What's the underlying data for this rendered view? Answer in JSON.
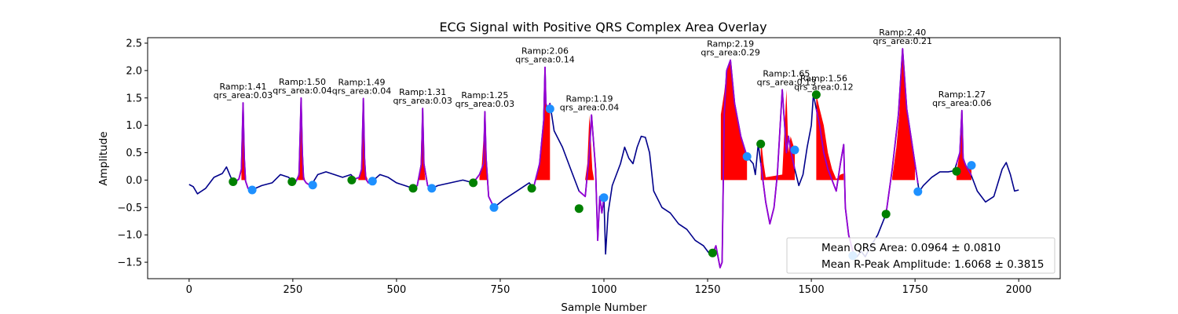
{
  "chart_data": {
    "type": "line",
    "title": "ECG Signal with Positive QRS Complex Area Overlay",
    "xlabel": "Sample Number",
    "ylabel": "Amplitude",
    "xlim": [
      -100,
      2100
    ],
    "ylim": [
      -1.8,
      2.6
    ],
    "xticks": [
      0,
      250,
      500,
      750,
      1000,
      1250,
      1500,
      1750,
      2000
    ],
    "yticks": [
      -1.5,
      -1.0,
      -0.5,
      0.0,
      0.5,
      1.0,
      1.5,
      2.0,
      2.5
    ],
    "grid": false,
    "legend_position": "lower right",
    "legend": [
      "Mean QRS Area: 0.0964 ± 0.0810",
      "Mean R-Peak Amplitude: 1.6068 ± 0.3815"
    ],
    "colors": {
      "ecg": "#00008b",
      "qrs_segment": "#9400d3",
      "area_fill": "#ff0000",
      "onset_marker": "#008000",
      "offset_marker": "#1e90ff"
    },
    "ecg_signal": {
      "x": [
        0,
        10,
        20,
        40,
        60,
        80,
        90,
        100,
        106,
        112,
        120,
        126,
        130,
        133,
        136,
        142,
        150,
        160,
        175,
        200,
        220,
        240,
        248,
        258,
        265,
        270,
        273,
        276,
        282,
        290,
        298,
        310,
        330,
        350,
        370,
        390,
        400,
        410,
        416,
        420,
        423,
        426,
        432,
        442,
        460,
        480,
        500,
        520,
        540,
        550,
        560,
        563,
        566,
        575,
        585,
        600,
        630,
        660,
        685,
        700,
        710,
        713,
        716,
        722,
        735,
        760,
        790,
        810,
        820,
        830,
        845,
        855,
        858,
        860,
        864,
        870,
        880,
        900,
        920,
        940,
        955,
        965,
        970,
        980,
        985,
        990,
        995,
        1000,
        1004,
        1010,
        1020,
        1040,
        1050,
        1060,
        1070,
        1080,
        1090,
        1100,
        1110,
        1120,
        1140,
        1160,
        1180,
        1200,
        1220,
        1240,
        1255,
        1263,
        1270,
        1280,
        1285,
        1290,
        1296,
        1305,
        1315,
        1330,
        1345,
        1360,
        1365,
        1372,
        1380,
        1390,
        1400,
        1410,
        1418,
        1430,
        1440,
        1445,
        1450,
        1460,
        1470,
        1480,
        1490,
        1500,
        1505,
        1512,
        1520,
        1530,
        1540,
        1550,
        1560,
        1570,
        1578,
        1582,
        1590,
        1600,
        1610,
        1620,
        1630,
        1640,
        1660,
        1680,
        1695,
        1710,
        1720,
        1730,
        1740,
        1750,
        1760,
        1770,
        1790,
        1810,
        1830,
        1845,
        1858,
        1863,
        1866,
        1872,
        1885,
        1900,
        1920,
        1940,
        1960,
        1970,
        1980,
        1990,
        2000
      ],
      "y": [
        -0.08,
        -0.12,
        -0.25,
        -0.15,
        0.05,
        0.12,
        0.24,
        0.06,
        -0.03,
        -0.03,
        0.02,
        0.2,
        1.41,
        0.4,
        -0.02,
        -0.15,
        -0.2,
        -0.15,
        -0.1,
        -0.05,
        0.1,
        0.05,
        -0.03,
        -0.02,
        0.1,
        1.5,
        0.5,
        0.02,
        -0.05,
        -0.09,
        -0.05,
        0.1,
        0.15,
        0.1,
        0.05,
        0.1,
        0.02,
        0.05,
        0.2,
        1.49,
        0.4,
        0.02,
        -0.05,
        -0.02,
        0.1,
        0.05,
        -0.05,
        -0.1,
        -0.15,
        -0.1,
        0.3,
        1.31,
        0.3,
        -0.1,
        -0.15,
        -0.1,
        -0.05,
        0.0,
        -0.05,
        0.1,
        0.3,
        1.25,
        0.4,
        -0.3,
        -0.5,
        -0.35,
        -0.2,
        -0.1,
        -0.05,
        -0.15,
        0.3,
        1.1,
        2.06,
        1.4,
        1.3,
        1.4,
        0.9,
        0.6,
        0.2,
        -0.2,
        -0.3,
        0.5,
        1.19,
        0.2,
        -1.1,
        -0.3,
        -0.6,
        -0.32,
        -1.35,
        -0.6,
        -0.1,
        0.3,
        0.6,
        0.4,
        0.3,
        0.6,
        0.8,
        0.78,
        0.5,
        -0.2,
        -0.5,
        -0.6,
        -0.8,
        -0.9,
        -1.1,
        -1.2,
        -1.35,
        -1.33,
        -1.2,
        -1.6,
        -1.5,
        1.2,
        2.0,
        2.19,
        1.4,
        0.8,
        0.43,
        0.3,
        0.1,
        0.66,
        0.2,
        -0.4,
        -0.8,
        -0.5,
        0.1,
        1.65,
        0.5,
        0.8,
        0.55,
        0.2,
        -0.1,
        0.1,
        0.6,
        1.0,
        1.56,
        1.3,
        1.0,
        0.5,
        0.2,
        0.0,
        -0.2,
        0.3,
        0.65,
        -0.5,
        -1.0,
        -1.3,
        -1.4,
        -1.3,
        -1.4,
        -1.25,
        -1.0,
        -0.62,
        0.2,
        1.2,
        2.4,
        1.3,
        0.8,
        0.3,
        -0.21,
        -0.1,
        0.05,
        0.15,
        0.15,
        0.17,
        0.5,
        1.27,
        0.4,
        0.27,
        0.1,
        -0.2,
        -0.4,
        -0.3,
        0.2,
        0.32,
        0.1,
        -0.2,
        -0.18
      ]
    },
    "qrs_segments": [
      [
        106,
        150
      ],
      [
        248,
        298
      ],
      [
        392,
        442
      ],
      [
        540,
        585
      ],
      [
        685,
        735
      ],
      [
        826,
        870
      ],
      [
        940,
        1000
      ],
      [
        1262,
        1345
      ],
      [
        1378,
        1460
      ],
      [
        1512,
        1600
      ],
      [
        1680,
        1757
      ],
      [
        1850,
        1886
      ]
    ],
    "onset_markers": {
      "x": [
        106,
        248,
        392,
        540,
        685,
        826,
        940,
        1262,
        1378,
        1512,
        1680,
        1850
      ],
      "y": [
        -0.03,
        -0.03,
        0.0,
        -0.15,
        -0.05,
        -0.15,
        -0.52,
        -1.33,
        0.66,
        1.56,
        -0.62,
        0.16
      ]
    },
    "offset_markers": {
      "x": [
        152,
        298,
        442,
        585,
        735,
        870,
        1000,
        1345,
        1460,
        1600,
        1757,
        1886
      ],
      "y": [
        -0.18,
        -0.09,
        -0.02,
        -0.15,
        -0.5,
        1.3,
        -0.32,
        0.43,
        0.55,
        -1.38,
        -0.21,
        0.27
      ]
    },
    "area_fills": [
      {
        "x": [
          126,
          128,
          130,
          132,
          134,
          136
        ],
        "y": [
          0.2,
          0.8,
          1.41,
          0.8,
          0.3,
          0.02
        ]
      },
      {
        "x": [
          262,
          266,
          270,
          273,
          276,
          279
        ],
        "y": [
          0.05,
          0.3,
          1.5,
          0.5,
          0.1,
          0.02
        ]
      },
      {
        "x": [
          408,
          413,
          416,
          420,
          423,
          426,
          430
        ],
        "y": [
          0.05,
          0.1,
          0.4,
          1.49,
          0.4,
          0.1,
          0.02
        ]
      },
      {
        "x": [
          552,
          557,
          560,
          563,
          566,
          569
        ],
        "y": [
          0.02,
          0.1,
          0.8,
          1.31,
          0.3,
          0.02
        ]
      },
      {
        "x": [
          700,
          705,
          710,
          713,
          716,
          719
        ],
        "y": [
          0.05,
          0.2,
          0.8,
          1.25,
          0.4,
          0.02
        ]
      },
      {
        "x": [
          835,
          845,
          852,
          855,
          858,
          860,
          864,
          870
        ],
        "y": [
          0.05,
          0.3,
          0.8,
          1.5,
          2.06,
          1.4,
          1.3,
          1.35
        ]
      },
      {
        "x": [
          955,
          960,
          965,
          968,
          972,
          976
        ],
        "y": [
          0.02,
          0.3,
          1.19,
          0.8,
          0.2,
          0.02
        ]
      },
      {
        "x": [
          1282,
          1290,
          1296,
          1305,
          1315,
          1330,
          1345
        ],
        "y": [
          1.2,
          1.6,
          2.0,
          2.19,
          1.4,
          0.8,
          0.43
        ]
      },
      {
        "x": [
          1378,
          1380,
          1385,
          1390,
          1430,
          1440,
          1445,
          1450,
          1460
        ],
        "y": [
          0.6,
          0.66,
          0.3,
          0.05,
          0.1,
          1.65,
          0.5,
          0.8,
          0.55
        ]
      },
      {
        "x": [
          1512,
          1520,
          1530,
          1540,
          1550,
          1560,
          1565,
          1570,
          1578
        ],
        "y": [
          1.56,
          1.3,
          1.0,
          0.5,
          0.2,
          0.02,
          0.05,
          0.1,
          0.12
        ]
      },
      {
        "x": [
          1695,
          1705,
          1712,
          1720,
          1730,
          1740,
          1750
        ],
        "y": [
          0.05,
          0.6,
          1.2,
          2.4,
          1.3,
          0.8,
          0.3
        ]
      },
      {
        "x": [
          1850,
          1858,
          1863,
          1866,
          1870,
          1875,
          1886
        ],
        "y": [
          0.15,
          0.5,
          1.27,
          0.4,
          0.3,
          0.25,
          0.27
        ]
      }
    ],
    "annotations": [
      {
        "x": 130,
        "y": 1.41,
        "ramp": "Ramp:1.41",
        "area": "qrs_area:0.03"
      },
      {
        "x": 273,
        "y": 1.5,
        "ramp": "Ramp:1.50",
        "area": "qrs_area:0.04"
      },
      {
        "x": 416,
        "y": 1.49,
        "ramp": "Ramp:1.49",
        "area": "qrs_area:0.04"
      },
      {
        "x": 563,
        "y": 1.31,
        "ramp": "Ramp:1.31",
        "area": "qrs_area:0.03"
      },
      {
        "x": 713,
        "y": 1.25,
        "ramp": "Ramp:1.25",
        "area": "qrs_area:0.03"
      },
      {
        "x": 858,
        "y": 2.06,
        "ramp": "Ramp:2.06",
        "area": "qrs_area:0.14"
      },
      {
        "x": 965,
        "y": 1.19,
        "ramp": "Ramp:1.19",
        "area": "qrs_area:0.04"
      },
      {
        "x": 1305,
        "y": 2.19,
        "ramp": "Ramp:2.19",
        "area": "qrs_area:0.29"
      },
      {
        "x": 1440,
        "y": 1.65,
        "ramp": "Ramp:1.65",
        "area": "qrs_area:0.13"
      },
      {
        "x": 1530,
        "y": 1.56,
        "ramp": "Ramp:1.56",
        "area": "qrs_area:0.12"
      },
      {
        "x": 1720,
        "y": 2.4,
        "ramp": "Ramp:2.40",
        "area": "qrs_area:0.21"
      },
      {
        "x": 1863,
        "y": 1.27,
        "ramp": "Ramp:1.27",
        "area": "qrs_area:0.06"
      }
    ]
  }
}
